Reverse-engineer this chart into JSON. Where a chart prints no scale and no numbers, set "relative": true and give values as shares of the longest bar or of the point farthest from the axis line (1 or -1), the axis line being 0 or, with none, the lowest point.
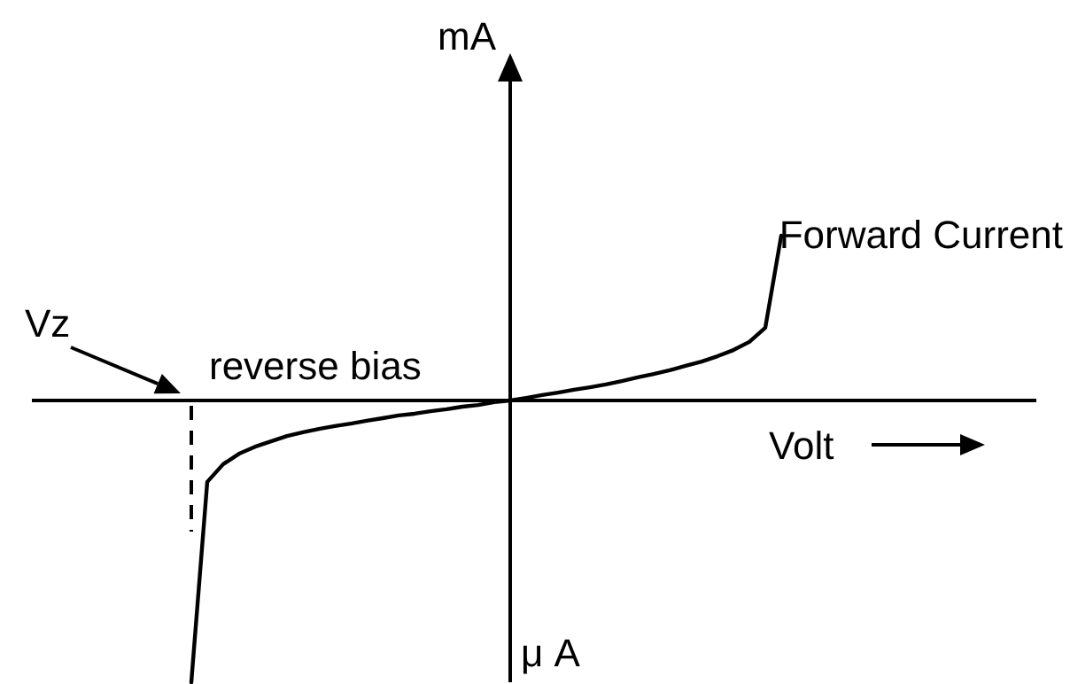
{
  "chart_data": {
    "type": "line",
    "relative": true,
    "ylabel": "mA",
    "xlabel": "Volt",
    "annotations": [
      "Vz",
      "reverse bias",
      "Forward Current",
      "μ A"
    ],
    "categories": [
      null,
      null,
      null,
      null,
      null,
      null,
      null,
      null,
      null,
      null,
      null,
      null,
      null,
      null,
      null,
      null,
      null,
      null,
      null,
      null,
      null,
      null,
      null,
      null,
      null,
      null,
      null,
      null,
      null,
      null,
      null,
      null,
      null,
      null,
      null,
      null,
      null,
      null
    ],
    "series": [
      {
        "color": "#000000",
        "values": [
          -1,
          -0.289,
          -0.226,
          -0.189,
          -0.164,
          -0.145,
          -0.126,
          -0.113,
          -0.101,
          -0.091,
          -0.082,
          -0.072,
          -0.063,
          -0.053,
          -0.047,
          -0.038,
          -0.031,
          -0.022,
          -0.016,
          -0.006,
          0,
          0.009,
          0.019,
          0.028,
          0.038,
          0.047,
          0.057,
          0.069,
          0.082,
          0.094,
          0.107,
          0.123,
          0.138,
          0.157,
          0.179,
          0.208,
          0.258,
          0.585
        ]
      }
    ]
  }
}
